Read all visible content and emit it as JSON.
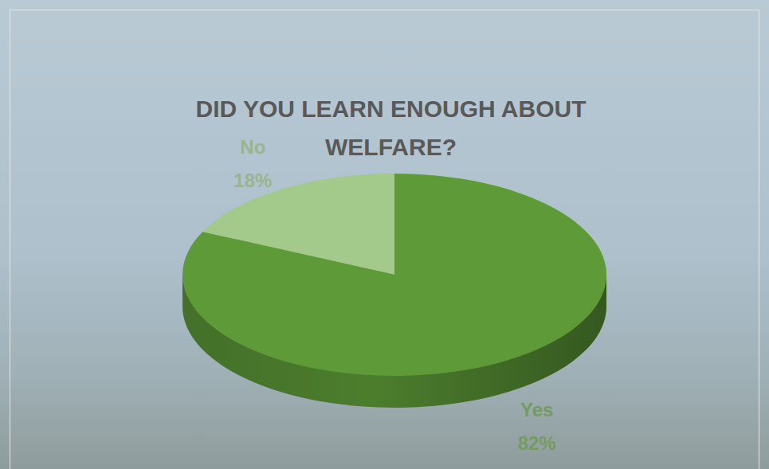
{
  "chart_data": {
    "type": "pie",
    "title": "DID YOU LEARN ENOUGH ABOUT WELFARE?",
    "categories": [
      "Yes",
      "No"
    ],
    "values": [
      82,
      18
    ],
    "value_labels": [
      "82%",
      "18%"
    ],
    "colors": [
      "#5e9b38",
      "#a3c98b"
    ],
    "data_labels": true
  }
}
